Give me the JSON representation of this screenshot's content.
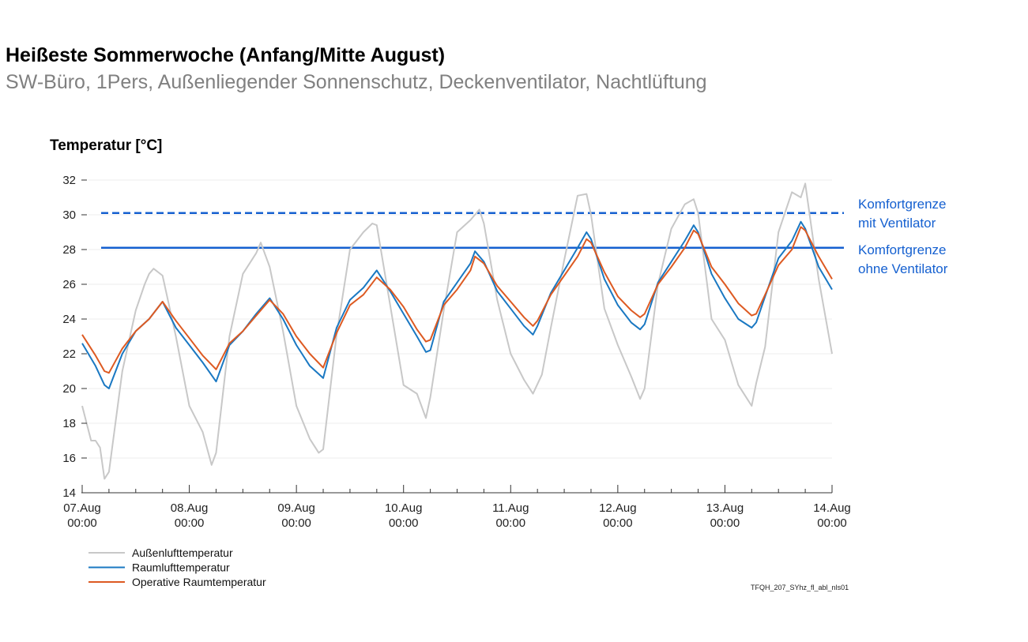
{
  "title": "Heißeste Sommerwoche (Anfang/Mitte August)",
  "subtitle": "SW-Büro, 1Pers, Außenliegender Sonnenschutz, Deckenventilator, Nachtlüftung",
  "footer_code": "TFQH_207_SYhz_fl_abl_nls01",
  "chart_data": {
    "type": "line",
    "ylabel": "Temperatur [°C]",
    "ylim": [
      14,
      32
    ],
    "yticks": [
      14,
      16,
      18,
      20,
      22,
      24,
      26,
      28,
      30,
      32
    ],
    "xlim": [
      "07.Aug 00:00",
      "14.Aug 00:00"
    ],
    "xticks": [
      "07.Aug 00:00",
      "08.Aug 00:00",
      "09.Aug 00:00",
      "10.Aug 00:00",
      "11.Aug 00:00",
      "12.Aug 00:00",
      "13.Aug 00:00",
      "14.Aug 00:00"
    ],
    "grid": true,
    "legend": "bottom-left",
    "reference_lines": [
      {
        "label": [
          "Komfortgrenze",
          "mit Ventilator"
        ],
        "value": 30.1,
        "style": "dashed",
        "color": "#1560d0"
      },
      {
        "label": [
          "Komfortgrenze",
          "ohne Ventilator"
        ],
        "value": 28.1,
        "style": "solid",
        "color": "#1560d0"
      }
    ],
    "series": [
      {
        "name": "Außenlufttemperatur",
        "color": "#c8c8c8",
        "points": [
          [
            "07.Aug 00:00",
            19.0
          ],
          [
            "07.Aug 02:00",
            17.0
          ],
          [
            "07.Aug 03:00",
            17.0
          ],
          [
            "07.Aug 04:00",
            16.6
          ],
          [
            "07.Aug 05:00",
            14.8
          ],
          [
            "07.Aug 06:00",
            15.2
          ],
          [
            "07.Aug 09:00",
            21.0
          ],
          [
            "07.Aug 12:00",
            24.5
          ],
          [
            "07.Aug 14:00",
            26.0
          ],
          [
            "07.Aug 15:00",
            26.6
          ],
          [
            "07.Aug 16:00",
            26.9
          ],
          [
            "07.Aug 18:00",
            26.5
          ],
          [
            "07.Aug 21:00",
            23.0
          ],
          [
            "08.Aug 00:00",
            19.0
          ],
          [
            "08.Aug 03:00",
            17.5
          ],
          [
            "08.Aug 05:00",
            15.6
          ],
          [
            "08.Aug 06:00",
            16.3
          ],
          [
            "08.Aug 09:00",
            23.0
          ],
          [
            "08.Aug 12:00",
            26.6
          ],
          [
            "08.Aug 15:00",
            27.8
          ],
          [
            "08.Aug 16:00",
            28.4
          ],
          [
            "08.Aug 18:00",
            27.0
          ],
          [
            "08.Aug 21:00",
            23.3
          ],
          [
            "09.Aug 00:00",
            19.0
          ],
          [
            "09.Aug 03:00",
            17.1
          ],
          [
            "09.Aug 05:00",
            16.3
          ],
          [
            "09.Aug 06:00",
            16.5
          ],
          [
            "09.Aug 09:00",
            23.1
          ],
          [
            "09.Aug 12:00",
            28.0
          ],
          [
            "09.Aug 15:00",
            29.0
          ],
          [
            "09.Aug 17:00",
            29.5
          ],
          [
            "09.Aug 18:00",
            29.4
          ],
          [
            "09.Aug 21:00",
            24.8
          ],
          [
            "10.Aug 00:00",
            20.2
          ],
          [
            "10.Aug 03:00",
            19.7
          ],
          [
            "10.Aug 05:00",
            18.3
          ],
          [
            "10.Aug 06:00",
            19.5
          ],
          [
            "10.Aug 09:00",
            24.5
          ],
          [
            "10.Aug 12:00",
            29.0
          ],
          [
            "10.Aug 15:00",
            29.7
          ],
          [
            "10.Aug 17:00",
            30.3
          ],
          [
            "10.Aug 18:00",
            29.5
          ],
          [
            "10.Aug 21:00",
            25.1
          ],
          [
            "11.Aug 00:00",
            22.0
          ],
          [
            "11.Aug 03:00",
            20.5
          ],
          [
            "11.Aug 05:00",
            19.7
          ],
          [
            "11.Aug 07:00",
            20.8
          ],
          [
            "11.Aug 09:00",
            23.5
          ],
          [
            "11.Aug 12:00",
            27.4
          ],
          [
            "11.Aug 15:00",
            31.1
          ],
          [
            "11.Aug 17:00",
            31.2
          ],
          [
            "11.Aug 18:00",
            30.0
          ],
          [
            "11.Aug 21:00",
            24.6
          ],
          [
            "12.Aug 00:00",
            22.5
          ],
          [
            "12.Aug 03:00",
            20.7
          ],
          [
            "12.Aug 05:00",
            19.4
          ],
          [
            "12.Aug 06:00",
            20.0
          ],
          [
            "12.Aug 09:00",
            26.0
          ],
          [
            "12.Aug 12:00",
            29.2
          ],
          [
            "12.Aug 15:00",
            30.6
          ],
          [
            "12.Aug 17:00",
            30.9
          ],
          [
            "12.Aug 18:00",
            30.1
          ],
          [
            "12.Aug 21:00",
            24.0
          ],
          [
            "13.Aug 00:00",
            22.8
          ],
          [
            "13.Aug 03:00",
            20.2
          ],
          [
            "13.Aug 06:00",
            19.0
          ],
          [
            "13.Aug 07:00",
            20.3
          ],
          [
            "13.Aug 09:00",
            22.4
          ],
          [
            "13.Aug 12:00",
            29.0
          ],
          [
            "13.Aug 15:00",
            31.3
          ],
          [
            "13.Aug 17:00",
            31.0
          ],
          [
            "13.Aug 18:00",
            31.8
          ],
          [
            "13.Aug 21:00",
            26.3
          ],
          [
            "14.Aug 00:00",
            22.0
          ]
        ]
      },
      {
        "name": "Raumlufttemperatur",
        "color": "#1a78c2",
        "points": [
          [
            "07.Aug 00:00",
            22.6
          ],
          [
            "07.Aug 03:00",
            21.3
          ],
          [
            "07.Aug 05:00",
            20.2
          ],
          [
            "07.Aug 06:00",
            20.0
          ],
          [
            "07.Aug 09:00",
            22.0
          ],
          [
            "07.Aug 12:00",
            23.3
          ],
          [
            "07.Aug 15:00",
            24.0
          ],
          [
            "07.Aug 18:00",
            25.0
          ],
          [
            "07.Aug 21:00",
            23.5
          ],
          [
            "08.Aug 00:00",
            22.5
          ],
          [
            "08.Aug 03:00",
            21.5
          ],
          [
            "08.Aug 06:00",
            20.4
          ],
          [
            "08.Aug 09:00",
            22.5
          ],
          [
            "08.Aug 12:00",
            23.3
          ],
          [
            "08.Aug 15:00",
            24.3
          ],
          [
            "08.Aug 18:00",
            25.2
          ],
          [
            "08.Aug 21:00",
            24.0
          ],
          [
            "09.Aug 00:00",
            22.5
          ],
          [
            "09.Aug 03:00",
            21.3
          ],
          [
            "09.Aug 06:00",
            20.6
          ],
          [
            "09.Aug 09:00",
            23.5
          ],
          [
            "09.Aug 12:00",
            25.1
          ],
          [
            "09.Aug 15:00",
            25.8
          ],
          [
            "09.Aug 18:00",
            26.8
          ],
          [
            "09.Aug 21:00",
            25.6
          ],
          [
            "10.Aug 00:00",
            24.3
          ],
          [
            "10.Aug 03:00",
            23.0
          ],
          [
            "10.Aug 05:00",
            22.1
          ],
          [
            "10.Aug 06:00",
            22.2
          ],
          [
            "10.Aug 09:00",
            25.0
          ],
          [
            "10.Aug 12:00",
            26.1
          ],
          [
            "10.Aug 15:00",
            27.2
          ],
          [
            "10.Aug 16:00",
            27.9
          ],
          [
            "10.Aug 18:00",
            27.3
          ],
          [
            "10.Aug 21:00",
            25.6
          ],
          [
            "11.Aug 00:00",
            24.6
          ],
          [
            "11.Aug 03:00",
            23.6
          ],
          [
            "11.Aug 05:00",
            23.1
          ],
          [
            "11.Aug 06:00",
            23.6
          ],
          [
            "11.Aug 09:00",
            25.5
          ],
          [
            "11.Aug 12:00",
            26.8
          ],
          [
            "11.Aug 15:00",
            28.1
          ],
          [
            "11.Aug 17:00",
            29.0
          ],
          [
            "11.Aug 18:00",
            28.6
          ],
          [
            "11.Aug 21:00",
            26.3
          ],
          [
            "12.Aug 00:00",
            24.8
          ],
          [
            "12.Aug 03:00",
            23.8
          ],
          [
            "12.Aug 05:00",
            23.4
          ],
          [
            "12.Aug 06:00",
            23.7
          ],
          [
            "12.Aug 09:00",
            26.1
          ],
          [
            "12.Aug 12:00",
            27.3
          ],
          [
            "12.Aug 15:00",
            28.5
          ],
          [
            "12.Aug 17:00",
            29.4
          ],
          [
            "12.Aug 18:00",
            29.0
          ],
          [
            "12.Aug 21:00",
            26.6
          ],
          [
            "13.Aug 00:00",
            25.2
          ],
          [
            "13.Aug 03:00",
            24.0
          ],
          [
            "13.Aug 06:00",
            23.5
          ],
          [
            "13.Aug 07:00",
            23.8
          ],
          [
            "13.Aug 09:00",
            25.3
          ],
          [
            "13.Aug 12:00",
            27.5
          ],
          [
            "13.Aug 15:00",
            28.5
          ],
          [
            "13.Aug 17:00",
            29.6
          ],
          [
            "13.Aug 18:00",
            29.2
          ],
          [
            "13.Aug 21:00",
            27.0
          ],
          [
            "14.Aug 00:00",
            25.7
          ]
        ]
      },
      {
        "name": "Operative Raumtemperatur",
        "color": "#dd5a22",
        "points": [
          [
            "07.Aug 00:00",
            23.1
          ],
          [
            "07.Aug 03:00",
            21.9
          ],
          [
            "07.Aug 05:00",
            21.0
          ],
          [
            "07.Aug 06:00",
            20.9
          ],
          [
            "07.Aug 09:00",
            22.3
          ],
          [
            "07.Aug 12:00",
            23.3
          ],
          [
            "07.Aug 15:00",
            24.0
          ],
          [
            "07.Aug 18:00",
            25.0
          ],
          [
            "07.Aug 21:00",
            23.9
          ],
          [
            "08.Aug 00:00",
            22.9
          ],
          [
            "08.Aug 03:00",
            21.9
          ],
          [
            "08.Aug 06:00",
            21.1
          ],
          [
            "08.Aug 09:00",
            22.6
          ],
          [
            "08.Aug 12:00",
            23.3
          ],
          [
            "08.Aug 15:00",
            24.2
          ],
          [
            "08.Aug 18:00",
            25.1
          ],
          [
            "08.Aug 21:00",
            24.3
          ],
          [
            "09.Aug 00:00",
            23.0
          ],
          [
            "09.Aug 03:00",
            22.0
          ],
          [
            "09.Aug 06:00",
            21.2
          ],
          [
            "09.Aug 09:00",
            23.2
          ],
          [
            "09.Aug 12:00",
            24.8
          ],
          [
            "09.Aug 15:00",
            25.4
          ],
          [
            "09.Aug 18:00",
            26.4
          ],
          [
            "09.Aug 21:00",
            25.7
          ],
          [
            "10.Aug 00:00",
            24.7
          ],
          [
            "10.Aug 03:00",
            23.4
          ],
          [
            "10.Aug 05:00",
            22.7
          ],
          [
            "10.Aug 06:00",
            22.8
          ],
          [
            "10.Aug 09:00",
            24.8
          ],
          [
            "10.Aug 12:00",
            25.7
          ],
          [
            "10.Aug 15:00",
            26.8
          ],
          [
            "10.Aug 16:00",
            27.6
          ],
          [
            "10.Aug 18:00",
            27.2
          ],
          [
            "10.Aug 21:00",
            25.9
          ],
          [
            "11.Aug 00:00",
            25.0
          ],
          [
            "11.Aug 03:00",
            24.1
          ],
          [
            "11.Aug 05:00",
            23.6
          ],
          [
            "11.Aug 06:00",
            23.9
          ],
          [
            "11.Aug 09:00",
            25.4
          ],
          [
            "11.Aug 12:00",
            26.5
          ],
          [
            "11.Aug 15:00",
            27.6
          ],
          [
            "11.Aug 17:00",
            28.6
          ],
          [
            "11.Aug 18:00",
            28.4
          ],
          [
            "11.Aug 21:00",
            26.7
          ],
          [
            "12.Aug 00:00",
            25.3
          ],
          [
            "12.Aug 03:00",
            24.5
          ],
          [
            "12.Aug 05:00",
            24.1
          ],
          [
            "12.Aug 06:00",
            24.3
          ],
          [
            "12.Aug 09:00",
            26.0
          ],
          [
            "12.Aug 12:00",
            27.0
          ],
          [
            "12.Aug 15:00",
            28.1
          ],
          [
            "12.Aug 17:00",
            29.1
          ],
          [
            "12.Aug 18:00",
            28.9
          ],
          [
            "12.Aug 21:00",
            27.0
          ],
          [
            "13.Aug 00:00",
            26.0
          ],
          [
            "13.Aug 03:00",
            24.9
          ],
          [
            "13.Aug 06:00",
            24.2
          ],
          [
            "13.Aug 07:00",
            24.3
          ],
          [
            "13.Aug 09:00",
            25.4
          ],
          [
            "13.Aug 12:00",
            27.1
          ],
          [
            "13.Aug 15:00",
            28.0
          ],
          [
            "13.Aug 17:00",
            29.3
          ],
          [
            "13.Aug 18:00",
            29.1
          ],
          [
            "13.Aug 21:00",
            27.6
          ],
          [
            "14.Aug 00:00",
            26.3
          ]
        ]
      }
    ]
  }
}
